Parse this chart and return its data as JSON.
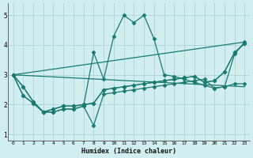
{
  "xlabel": "Humidex (Indice chaleur)",
  "xlim": [
    -0.5,
    23.5
  ],
  "ylim": [
    0.8,
    5.4
  ],
  "yticks": [
    1,
    2,
    3,
    4,
    5
  ],
  "xticks": [
    0,
    1,
    2,
    3,
    4,
    5,
    6,
    7,
    8,
    9,
    10,
    11,
    12,
    13,
    14,
    15,
    16,
    17,
    18,
    19,
    20,
    21,
    22,
    23
  ],
  "bg_color": "#d0edf0",
  "grid_color": "#a8cdd0",
  "line_color": "#1a7a6e",
  "series": [
    [
      3.0,
      2.6,
      2.1,
      1.75,
      1.75,
      1.85,
      1.85,
      1.95,
      1.3,
      2.35,
      2.4,
      2.45,
      2.5,
      2.55,
      2.6,
      2.65,
      2.7,
      2.75,
      2.8,
      2.85,
      2.55,
      2.6,
      2.7,
      2.7
    ],
    [
      3.0,
      2.6,
      2.1,
      1.75,
      1.75,
      1.85,
      1.85,
      1.95,
      3.75,
      2.85,
      4.3,
      5.0,
      4.75,
      5.0,
      4.2,
      3.0,
      2.95,
      2.85,
      2.75,
      2.65,
      2.55,
      2.6,
      3.7,
      4.1
    ],
    [
      3.0,
      2.3,
      2.05,
      1.75,
      1.85,
      1.95,
      1.95,
      2.0,
      2.05,
      2.5,
      2.55,
      2.6,
      2.65,
      2.7,
      2.75,
      2.8,
      2.85,
      2.9,
      2.95,
      2.75,
      2.8,
      3.1,
      3.75,
      4.05
    ],
    [
      3.0,
      2.3,
      2.05,
      1.75,
      1.85,
      1.95,
      1.95,
      2.0,
      2.05,
      2.5,
      2.55,
      2.6,
      2.65,
      2.7,
      2.75,
      2.8,
      2.85,
      2.9,
      2.95,
      2.75,
      2.8,
      3.1,
      3.75,
      4.05
    ]
  ],
  "straight_lines": [
    {
      "x": [
        0,
        23
      ],
      "y": [
        3.0,
        4.1
      ]
    },
    {
      "x": [
        0,
        23
      ],
      "y": [
        3.0,
        2.6
      ]
    }
  ],
  "marker": "D",
  "markersize": 2.5,
  "linewidth": 0.9
}
